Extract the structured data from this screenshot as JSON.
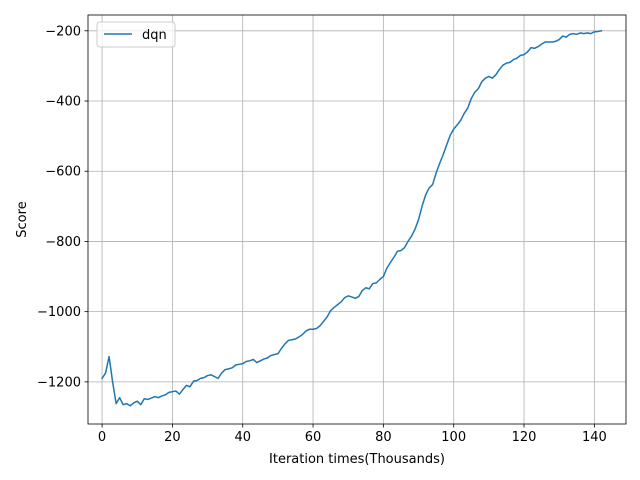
{
  "chart_data": {
    "type": "line",
    "title": "",
    "xlabel": "Iteration times(Thousands)",
    "ylabel": "Score",
    "xlim": [
      -4,
      149
    ],
    "ylim": [
      -1320,
      -155
    ],
    "xticks": [
      0,
      20,
      40,
      60,
      80,
      100,
      120,
      140
    ],
    "yticks": [
      -1200,
      -1000,
      -800,
      -600,
      -400,
      -200
    ],
    "xtick_labels": [
      "0",
      "20",
      "40",
      "60",
      "80",
      "100",
      "120",
      "140"
    ],
    "ytick_labels": [
      "−1200",
      "−1000",
      "−800",
      "−600",
      "−400",
      "−200"
    ],
    "grid": true,
    "legend": {
      "position": "upper-left"
    },
    "series": [
      {
        "name": "dqn",
        "color": "#1f77b4",
        "x": [
          0,
          1,
          2,
          3,
          4,
          5,
          6,
          7,
          8,
          9,
          10,
          11,
          12,
          13,
          14,
          15,
          16,
          17,
          18,
          19,
          20,
          21,
          22,
          23,
          24,
          25,
          26,
          27,
          28,
          29,
          30,
          31,
          32,
          33,
          34,
          35,
          36,
          37,
          38,
          39,
          40,
          41,
          42,
          43,
          44,
          45,
          46,
          47,
          48,
          49,
          50,
          51,
          52,
          53,
          54,
          55,
          56,
          57,
          58,
          59,
          60,
          61,
          62,
          63,
          64,
          65,
          66,
          67,
          68,
          69,
          70,
          71,
          72,
          73,
          74,
          75,
          76,
          77,
          78,
          79,
          80,
          81,
          82,
          83,
          84,
          85,
          86,
          87,
          88,
          89,
          90,
          91,
          92,
          93,
          94,
          95,
          96,
          97,
          98,
          99,
          100,
          101,
          102,
          103,
          104,
          105,
          106,
          107,
          108,
          109,
          110,
          111,
          112,
          113,
          114,
          115,
          116,
          117,
          118,
          119,
          120,
          121,
          122,
          123,
          124,
          125,
          126,
          127,
          128,
          129,
          130,
          131,
          132,
          133,
          134,
          135,
          136,
          137,
          138,
          139,
          140,
          141,
          142
        ],
        "values": [
          -1190,
          -1175,
          -1128,
          -1200,
          -1262,
          -1245,
          -1265,
          -1262,
          -1268,
          -1260,
          -1255,
          -1265,
          -1248,
          -1250,
          -1246,
          -1242,
          -1245,
          -1240,
          -1237,
          -1230,
          -1228,
          -1226,
          -1235,
          -1222,
          -1210,
          -1214,
          -1198,
          -1196,
          -1190,
          -1188,
          -1182,
          -1180,
          -1185,
          -1190,
          -1175,
          -1165,
          -1163,
          -1160,
          -1152,
          -1150,
          -1148,
          -1142,
          -1140,
          -1136,
          -1145,
          -1140,
          -1135,
          -1132,
          -1125,
          -1122,
          -1120,
          -1105,
          -1092,
          -1082,
          -1080,
          -1078,
          -1072,
          -1065,
          -1055,
          -1050,
          -1050,
          -1048,
          -1040,
          -1028,
          -1015,
          -997,
          -988,
          -980,
          -972,
          -960,
          -955,
          -958,
          -962,
          -957,
          -940,
          -932,
          -935,
          -920,
          -918,
          -908,
          -900,
          -876,
          -860,
          -845,
          -828,
          -826,
          -818,
          -800,
          -785,
          -765,
          -738,
          -700,
          -668,
          -648,
          -638,
          -605,
          -578,
          -553,
          -525,
          -498,
          -480,
          -468,
          -455,
          -435,
          -420,
          -393,
          -375,
          -365,
          -345,
          -335,
          -330,
          -335,
          -325,
          -310,
          -298,
          -292,
          -290,
          -282,
          -278,
          -270,
          -268,
          -260,
          -248,
          -250,
          -245,
          -238,
          -232,
          -232,
          -232,
          -230,
          -225,
          -215,
          -218,
          -210,
          -208,
          -210,
          -206,
          -208,
          -206,
          -208,
          -203,
          -202,
          -200
        ]
      }
    ]
  }
}
